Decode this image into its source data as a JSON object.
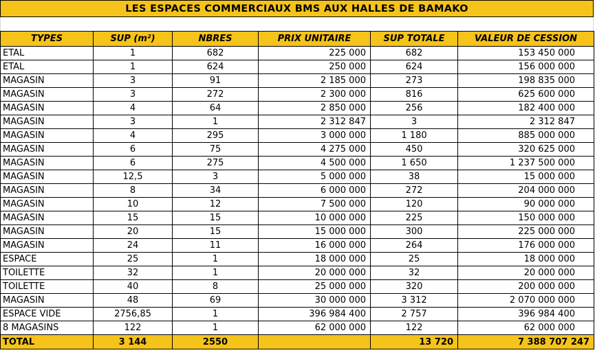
{
  "title": "LES ESPACES COMMERCIAUX BMS AUX HALLES DE BAMAKO",
  "headers": [
    "TYPES",
    "SUP (m²)",
    "NBRES",
    "PRIX UNITAIRE",
    "SUP TOTALE",
    "VALEUR DE CESSION"
  ],
  "rows": [
    [
      "ETAL",
      "1",
      "682",
      "225 000",
      "682",
      "153 450 000"
    ],
    [
      "ETAL",
      "1",
      "624",
      "250 000",
      "624",
      "156 000 000"
    ],
    [
      "MAGASIN",
      "3",
      "91",
      "2 185 000",
      "273",
      "198 835 000"
    ],
    [
      "MAGASIN",
      "3",
      "272",
      "2 300 000",
      "816",
      "625 600 000"
    ],
    [
      "MAGASIN",
      "4",
      "64",
      "2 850 000",
      "256",
      "182 400 000"
    ],
    [
      "MAGASIN",
      "3",
      "1",
      "2 312 847",
      "3",
      "2 312 847"
    ],
    [
      "MAGASIN",
      "4",
      "295",
      "3 000 000",
      "1 180",
      "885 000 000"
    ],
    [
      "MAGASIN",
      "6",
      "75",
      "4 275 000",
      "450",
      "320 625 000"
    ],
    [
      "MAGASIN",
      "6",
      "275",
      "4 500 000",
      "1 650",
      "1 237 500 000"
    ],
    [
      "MAGASIN",
      "12,5",
      "3",
      "5 000 000",
      "38",
      "15 000 000"
    ],
    [
      "MAGASIN",
      "8",
      "34",
      "6 000 000",
      "272",
      "204 000 000"
    ],
    [
      "MAGASIN",
      "10",
      "12",
      "7 500 000",
      "120",
      "90 000 000"
    ],
    [
      "MAGASIN",
      "15",
      "15",
      "10 000 000",
      "225",
      "150 000 000"
    ],
    [
      "MAGASIN",
      "20",
      "15",
      "15 000 000",
      "300",
      "225 000 000"
    ],
    [
      "MAGASIN",
      "24",
      "11",
      "16 000 000",
      "264",
      "176 000 000"
    ],
    [
      "ESPACE",
      "25",
      "1",
      "18 000 000",
      "25",
      "18 000 000"
    ],
    [
      "TOILETTE",
      "32",
      "1",
      "20 000 000",
      "32",
      "20 000 000"
    ],
    [
      "TOILETTE",
      "40",
      "8",
      "25 000 000",
      "320",
      "200 000 000"
    ],
    [
      "MAGASIN",
      "48",
      "69",
      "30 000 000",
      "3 312",
      "2 070 000 000"
    ],
    [
      "ESPACE VIDE",
      "2756,85",
      "1",
      "396 984 400",
      "2 757",
      "396 984 400"
    ],
    [
      "8 MAGASINS",
      "122",
      "1",
      "62 000 000",
      "122",
      "62 000 000"
    ]
  ],
  "total": [
    "TOTAL",
    "3 144",
    "2550",
    "",
    "13 720",
    "7 388 707 247"
  ],
  "colors": {
    "header_bg": "#f6c31a",
    "border": "#000000"
  }
}
